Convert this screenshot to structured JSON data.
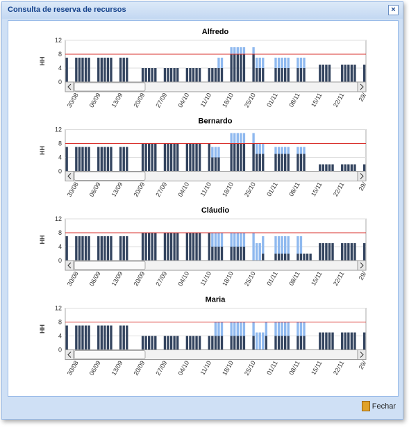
{
  "window": {
    "title": "Consulta de reserva de recursos"
  },
  "footer": {
    "button": "Fechar"
  },
  "chart_data": [
    {
      "type": "bar",
      "stacked": true,
      "title": "Alfredo",
      "y_label": "HH",
      "categories": [
        null,
        null,
        null,
        "30/08",
        null,
        null,
        null,
        null,
        null,
        null,
        "06/09",
        null,
        null,
        null,
        null,
        null,
        null,
        "13/09",
        null,
        null,
        null,
        null,
        null,
        null,
        "20/09",
        null,
        null,
        null,
        null,
        null,
        null,
        "27/09",
        null,
        null,
        null,
        null,
        null,
        null,
        "04/10",
        null,
        null,
        null,
        null,
        null,
        null,
        "11/10",
        null,
        null,
        null,
        null,
        null,
        null,
        "18/10",
        null,
        null,
        null,
        null,
        null,
        null,
        "25/10",
        null,
        null,
        null,
        null,
        null,
        null,
        "01/11",
        null,
        null,
        null,
        null,
        null,
        null,
        "08/11",
        null,
        null,
        null,
        null,
        null,
        null,
        "15/11",
        null,
        null,
        null,
        null,
        null,
        null,
        "22/11",
        null,
        null,
        null,
        null,
        null,
        null,
        "29/"
      ],
      "series": [
        {
          "color": "#33445f",
          "values": [
            7,
            0,
            0,
            7,
            7,
            7,
            7,
            7,
            0,
            0,
            7,
            7,
            7,
            7,
            7,
            0,
            0,
            7,
            7,
            7,
            0,
            0,
            0,
            0,
            4,
            4,
            4,
            4,
            4,
            0,
            0,
            4,
            4,
            4,
            4,
            4,
            0,
            0,
            4,
            4,
            4,
            4,
            4,
            0,
            0,
            4,
            4,
            4,
            4,
            4,
            0,
            0,
            8,
            8,
            8,
            8,
            8,
            0,
            0,
            8,
            4,
            4,
            4,
            0,
            0,
            0,
            4,
            4,
            4,
            4,
            4,
            0,
            0,
            4,
            4,
            4,
            0,
            0,
            0,
            0,
            5,
            5,
            5,
            5,
            0,
            0,
            0,
            5,
            5,
            5,
            5,
            5,
            0,
            0,
            5
          ]
        },
        {
          "color": "#8fb9ef",
          "values": [
            0,
            0,
            0,
            0,
            0,
            0,
            0,
            0,
            0,
            0,
            0,
            0,
            0,
            0,
            0,
            0,
            0,
            0,
            0,
            0,
            0,
            0,
            0,
            0,
            0,
            0,
            0,
            0,
            0,
            0,
            0,
            0,
            0,
            0,
            0,
            0,
            0,
            0,
            0,
            0,
            0,
            0,
            0,
            0,
            0,
            0,
            0,
            0,
            3,
            3,
            0,
            0,
            2,
            2,
            2,
            2,
            2,
            0,
            0,
            2,
            3,
            3,
            3,
            0,
            0,
            0,
            3,
            3,
            3,
            3,
            3,
            0,
            0,
            3,
            3,
            3,
            0,
            0,
            0,
            0,
            0,
            0,
            0,
            0,
            0,
            0,
            0,
            0,
            0,
            0,
            0,
            0,
            0,
            0,
            0
          ]
        }
      ],
      "ylim": [
        0,
        12
      ],
      "yticks": [
        0,
        4,
        8,
        12
      ],
      "grid": true,
      "reference_line": 8,
      "reference_color": "#d9302c"
    },
    {
      "type": "bar",
      "stacked": true,
      "title": "Bernardo",
      "y_label": "HH",
      "categories": [
        null,
        null,
        null,
        "30/08",
        null,
        null,
        null,
        null,
        null,
        null,
        "06/09",
        null,
        null,
        null,
        null,
        null,
        null,
        "13/09",
        null,
        null,
        null,
        null,
        null,
        null,
        "20/09",
        null,
        null,
        null,
        null,
        null,
        null,
        "27/09",
        null,
        null,
        null,
        null,
        null,
        null,
        "04/10",
        null,
        null,
        null,
        null,
        null,
        null,
        "11/10",
        null,
        null,
        null,
        null,
        null,
        null,
        "18/10",
        null,
        null,
        null,
        null,
        null,
        null,
        "25/10",
        null,
        null,
        null,
        null,
        null,
        null,
        "01/11",
        null,
        null,
        null,
        null,
        null,
        null,
        "08/11",
        null,
        null,
        null,
        null,
        null,
        null,
        "15/11",
        null,
        null,
        null,
        null,
        null,
        null,
        "22/11",
        null,
        null,
        null,
        null,
        null,
        null,
        "29/"
      ],
      "series": [
        {
          "color": "#33445f",
          "values": [
            7,
            0,
            0,
            7,
            7,
            7,
            7,
            7,
            0,
            0,
            7,
            7,
            7,
            7,
            7,
            0,
            0,
            7,
            7,
            7,
            0,
            0,
            0,
            0,
            8,
            8,
            8,
            8,
            8,
            0,
            0,
            8,
            8,
            8,
            8,
            8,
            0,
            0,
            8,
            8,
            8,
            8,
            8,
            0,
            0,
            8,
            4,
            4,
            4,
            0,
            0,
            0,
            8,
            8,
            8,
            8,
            8,
            0,
            0,
            8,
            5,
            5,
            5,
            0,
            0,
            0,
            5,
            5,
            5,
            5,
            5,
            0,
            0,
            5,
            5,
            5,
            0,
            0,
            0,
            0,
            2,
            2,
            2,
            2,
            2,
            0,
            0,
            2,
            2,
            2,
            2,
            2,
            0,
            0,
            2
          ]
        },
        {
          "color": "#8fb9ef",
          "values": [
            0,
            0,
            0,
            0,
            0,
            0,
            0,
            0,
            0,
            0,
            0,
            0,
            0,
            0,
            0,
            0,
            0,
            0,
            0,
            0,
            0,
            0,
            0,
            0,
            0,
            0,
            0,
            0,
            0,
            0,
            0,
            0,
            0,
            0,
            0,
            0,
            0,
            0,
            0,
            0,
            0,
            0,
            0,
            0,
            0,
            0,
            3,
            3,
            3,
            0,
            0,
            0,
            3,
            3,
            3,
            3,
            3,
            0,
            0,
            3,
            3,
            3,
            3,
            0,
            0,
            0,
            2,
            2,
            2,
            2,
            2,
            0,
            0,
            2,
            2,
            2,
            0,
            0,
            0,
            0,
            0,
            0,
            0,
            0,
            0,
            0,
            0,
            0,
            0,
            0,
            0,
            0,
            0,
            0,
            0
          ]
        }
      ],
      "ylim": [
        0,
        12
      ],
      "yticks": [
        0,
        4,
        8,
        12
      ],
      "grid": true,
      "reference_line": 8,
      "reference_color": "#d9302c"
    },
    {
      "type": "bar",
      "stacked": true,
      "title": "Cláudio",
      "y_label": "HH",
      "categories": [
        null,
        null,
        null,
        "30/08",
        null,
        null,
        null,
        null,
        null,
        null,
        "06/09",
        null,
        null,
        null,
        null,
        null,
        null,
        "13/09",
        null,
        null,
        null,
        null,
        null,
        null,
        "20/09",
        null,
        null,
        null,
        null,
        null,
        null,
        "27/09",
        null,
        null,
        null,
        null,
        null,
        null,
        "04/10",
        null,
        null,
        null,
        null,
        null,
        null,
        "11/10",
        null,
        null,
        null,
        null,
        null,
        null,
        "18/10",
        null,
        null,
        null,
        null,
        null,
        null,
        "25/10",
        null,
        null,
        null,
        null,
        null,
        null,
        "01/11",
        null,
        null,
        null,
        null,
        null,
        null,
        "08/11",
        null,
        null,
        null,
        null,
        null,
        null,
        "15/11",
        null,
        null,
        null,
        null,
        null,
        null,
        "22/11",
        null,
        null,
        null,
        null,
        null,
        null,
        "29/"
      ],
      "series": [
        {
          "color": "#33445f",
          "values": [
            7,
            0,
            0,
            7,
            7,
            7,
            7,
            7,
            0,
            0,
            7,
            7,
            7,
            7,
            7,
            0,
            0,
            7,
            7,
            7,
            0,
            0,
            0,
            0,
            8,
            8,
            8,
            8,
            8,
            0,
            0,
            8,
            8,
            8,
            8,
            8,
            0,
            0,
            8,
            8,
            8,
            8,
            8,
            0,
            0,
            8,
            4,
            4,
            4,
            4,
            0,
            0,
            4,
            4,
            4,
            4,
            4,
            0,
            0,
            0,
            0,
            0,
            2,
            0,
            0,
            0,
            2,
            2,
            2,
            2,
            2,
            0,
            0,
            2,
            2,
            2,
            2,
            2,
            0,
            0,
            5,
            5,
            5,
            5,
            5,
            0,
            0,
            5,
            5,
            5,
            5,
            5,
            0,
            0,
            5
          ]
        },
        {
          "color": "#8fb9ef",
          "values": [
            0,
            0,
            0,
            0,
            0,
            0,
            0,
            0,
            0,
            0,
            0,
            0,
            0,
            0,
            0,
            0,
            0,
            0,
            0,
            0,
            0,
            0,
            0,
            0,
            0,
            0,
            0,
            0,
            0,
            0,
            0,
            0,
            0,
            0,
            0,
            0,
            0,
            0,
            0,
            0,
            0,
            0,
            0,
            0,
            0,
            0,
            4,
            4,
            4,
            4,
            0,
            0,
            4,
            4,
            4,
            4,
            4,
            0,
            0,
            8,
            5,
            5,
            5,
            0,
            0,
            0,
            5,
            5,
            5,
            5,
            5,
            0,
            0,
            5,
            5,
            0,
            0,
            0,
            0,
            0,
            0,
            0,
            0,
            0,
            0,
            0,
            0,
            0,
            0,
            0,
            0,
            0,
            0,
            0,
            0
          ]
        }
      ],
      "ylim": [
        0,
        12
      ],
      "yticks": [
        0,
        4,
        8,
        12
      ],
      "grid": true,
      "reference_line": 8,
      "reference_color": "#d9302c"
    },
    {
      "type": "bar",
      "stacked": true,
      "title": "Maria",
      "y_label": "HH",
      "categories": [
        null,
        null,
        null,
        "30/08",
        null,
        null,
        null,
        null,
        null,
        null,
        "06/09",
        null,
        null,
        null,
        null,
        null,
        null,
        "13/09",
        null,
        null,
        null,
        null,
        null,
        null,
        "20/09",
        null,
        null,
        null,
        null,
        null,
        null,
        "27/09",
        null,
        null,
        null,
        null,
        null,
        null,
        "04/10",
        null,
        null,
        null,
        null,
        null,
        null,
        "11/10",
        null,
        null,
        null,
        null,
        null,
        null,
        "18/10",
        null,
        null,
        null,
        null,
        null,
        null,
        "25/10",
        null,
        null,
        null,
        null,
        null,
        null,
        "01/11",
        null,
        null,
        null,
        null,
        null,
        null,
        "08/11",
        null,
        null,
        null,
        null,
        null,
        null,
        "15/11",
        null,
        null,
        null,
        null,
        null,
        null,
        "22/11",
        null,
        null,
        null,
        null,
        null,
        null,
        "29/"
      ],
      "series": [
        {
          "color": "#33445f",
          "values": [
            7,
            0,
            0,
            7,
            7,
            7,
            7,
            7,
            0,
            0,
            7,
            7,
            7,
            7,
            7,
            0,
            0,
            7,
            7,
            7,
            0,
            0,
            0,
            0,
            4,
            4,
            4,
            4,
            4,
            0,
            0,
            4,
            4,
            4,
            4,
            4,
            0,
            0,
            4,
            4,
            4,
            4,
            4,
            0,
            0,
            4,
            4,
            4,
            4,
            4,
            0,
            0,
            4,
            4,
            4,
            4,
            4,
            0,
            0,
            4,
            0,
            0,
            0,
            4,
            0,
            0,
            4,
            4,
            4,
            4,
            4,
            0,
            0,
            4,
            4,
            4,
            0,
            0,
            0,
            0,
            5,
            5,
            5,
            5,
            5,
            0,
            0,
            5,
            5,
            5,
            5,
            5,
            0,
            0,
            5
          ]
        },
        {
          "color": "#8fb9ef",
          "values": [
            0,
            0,
            0,
            0,
            0,
            0,
            0,
            0,
            0,
            0,
            0,
            0,
            0,
            0,
            0,
            0,
            0,
            0,
            0,
            0,
            0,
            0,
            0,
            0,
            0,
            0,
            0,
            0,
            0,
            0,
            0,
            0,
            0,
            0,
            0,
            0,
            0,
            0,
            0,
            0,
            0,
            0,
            0,
            0,
            0,
            0,
            0,
            4,
            4,
            4,
            0,
            0,
            4,
            4,
            4,
            4,
            4,
            0,
            0,
            4,
            5,
            5,
            5,
            4,
            0,
            0,
            4,
            4,
            4,
            4,
            4,
            0,
            0,
            4,
            4,
            4,
            0,
            0,
            0,
            0,
            0,
            0,
            0,
            0,
            0,
            0,
            0,
            0,
            0,
            0,
            0,
            0,
            0,
            0,
            0
          ]
        }
      ],
      "ylim": [
        0,
        12
      ],
      "yticks": [
        0,
        4,
        8,
        12
      ],
      "grid": true,
      "reference_line": 8,
      "reference_color": "#d9302c"
    }
  ]
}
